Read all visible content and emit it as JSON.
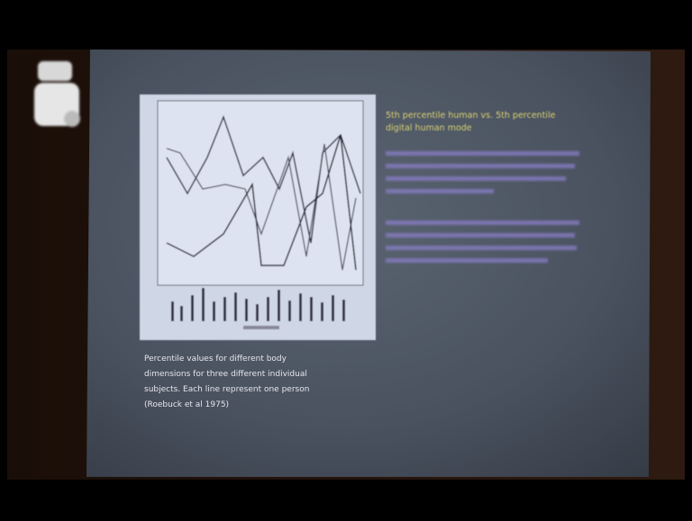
{
  "slide": {
    "heading": [
      "5th percentile human vs. 5th percentile",
      "digital human mode"
    ],
    "caption": [
      "Percentile values for different body",
      "dimensions for three different individual",
      "subjects. Each line represent one person",
      "(Roebuck et al 1975)"
    ]
  }
}
